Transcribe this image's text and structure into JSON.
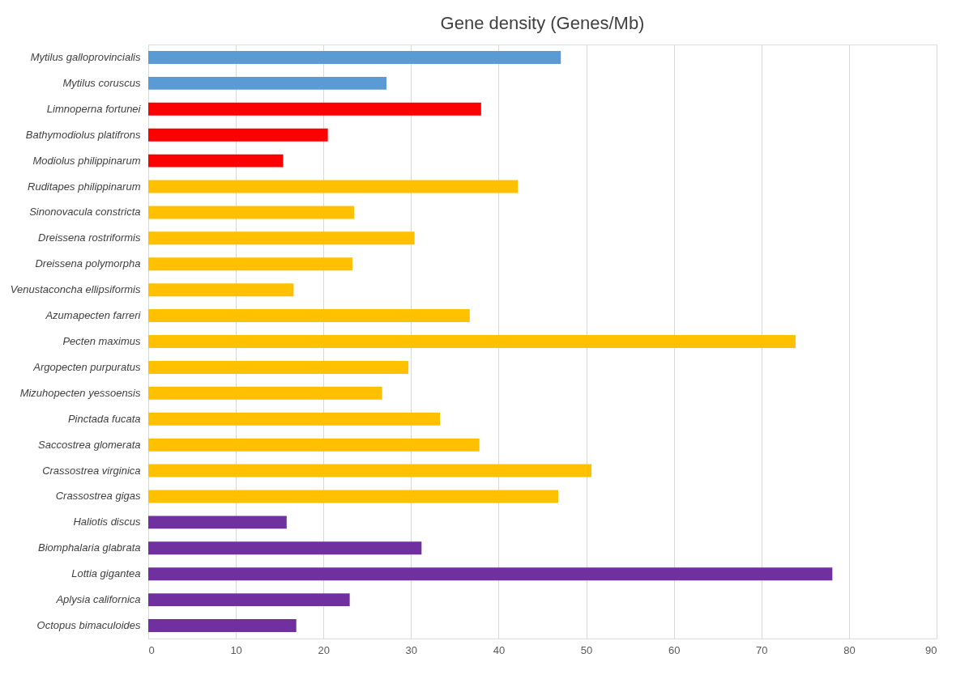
{
  "chart_data": {
    "type": "bar",
    "orientation": "horizontal",
    "title": "Gene density (Genes/Mb)",
    "categories": [
      "Mytilus galloprovincialis",
      "Mytilus coruscus",
      "Limnoperna fortunei",
      "Bathymodiolus platifrons",
      "Modiolus philippinarum",
      "Ruditapes philippinarum",
      "Sinonovacula constricta",
      "Dreissena rostriformis",
      "Dreissena polymorpha",
      "Venustaconcha ellipsiformis",
      "Azumapecten farreri",
      "Pecten maximus",
      "Argopecten purpuratus",
      "Mizuhopecten yessoensis",
      "Pinctada fucata",
      "Saccostrea glomerata",
      "Crassostrea virginica",
      "Crassostrea gigas",
      "Haliotis discus",
      "Biomphalaria glabrata",
      "Lottia gigantea",
      "Aplysia californica",
      "Octopus bimaculoides"
    ],
    "values": [
      47.1,
      27.2,
      38.0,
      20.5,
      15.4,
      42.2,
      23.5,
      30.4,
      23.3,
      16.6,
      36.7,
      73.9,
      29.7,
      26.7,
      33.3,
      37.8,
      50.6,
      46.8,
      15.8,
      31.2,
      78.1,
      23.0,
      16.9
    ],
    "colors": [
      "#5b9bd5",
      "#5b9bd5",
      "#ff0000",
      "#ff0000",
      "#ff0000",
      "#ffc000",
      "#ffc000",
      "#ffc000",
      "#ffc000",
      "#ffc000",
      "#ffc000",
      "#ffc000",
      "#ffc000",
      "#ffc000",
      "#ffc000",
      "#ffc000",
      "#ffc000",
      "#ffc000",
      "#7030a0",
      "#7030a0",
      "#7030a0",
      "#7030a0",
      "#7030a0"
    ],
    "xlim": [
      0,
      90
    ],
    "xticks": [
      0,
      10,
      20,
      30,
      40,
      50,
      60,
      70,
      80,
      90
    ],
    "grid": "x"
  }
}
